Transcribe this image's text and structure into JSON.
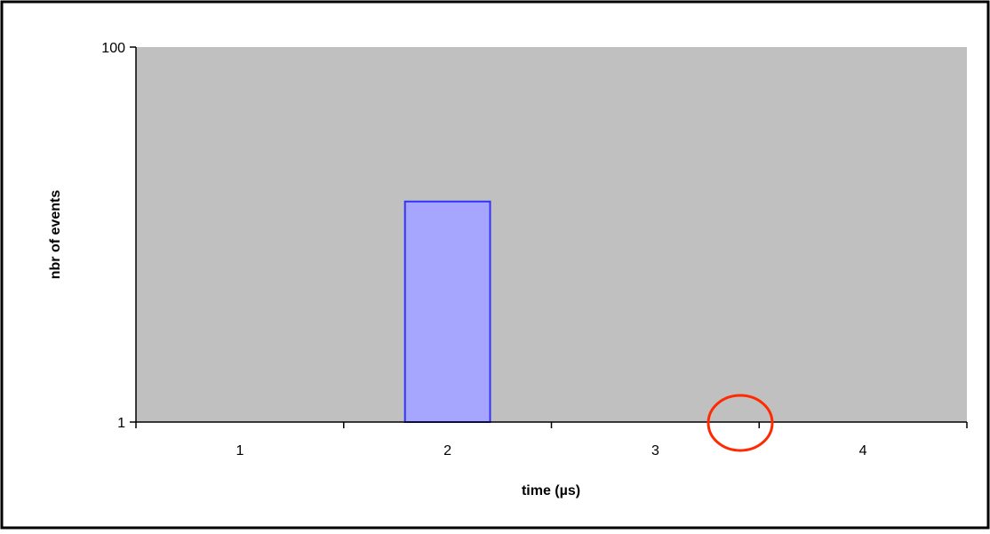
{
  "chart_data": {
    "type": "bar",
    "title": "",
    "xlabel": "time (µs)",
    "ylabel": "nbr of events",
    "yscale": "log",
    "ylim": [
      1,
      100
    ],
    "yticks": [
      {
        "value": 1,
        "label": "1"
      },
      {
        "value": 100,
        "label": "100"
      }
    ],
    "categories": [
      "1",
      "2",
      "3",
      "4"
    ],
    "values": [
      1,
      15,
      1,
      1
    ],
    "grid": false,
    "legend": "none",
    "annotations": [
      {
        "type": "circle",
        "description": "red circle on x-axis near boundary between 3 and 4"
      }
    ]
  },
  "colors": {
    "page_background": "#ffffff",
    "frame_border": "#000000",
    "plot_background": "#c0c0c0",
    "bar_fill": "#a6a6ff",
    "bar_stroke": "#3333ff",
    "annotation": "#ff2a00",
    "axis": "#000000"
  }
}
